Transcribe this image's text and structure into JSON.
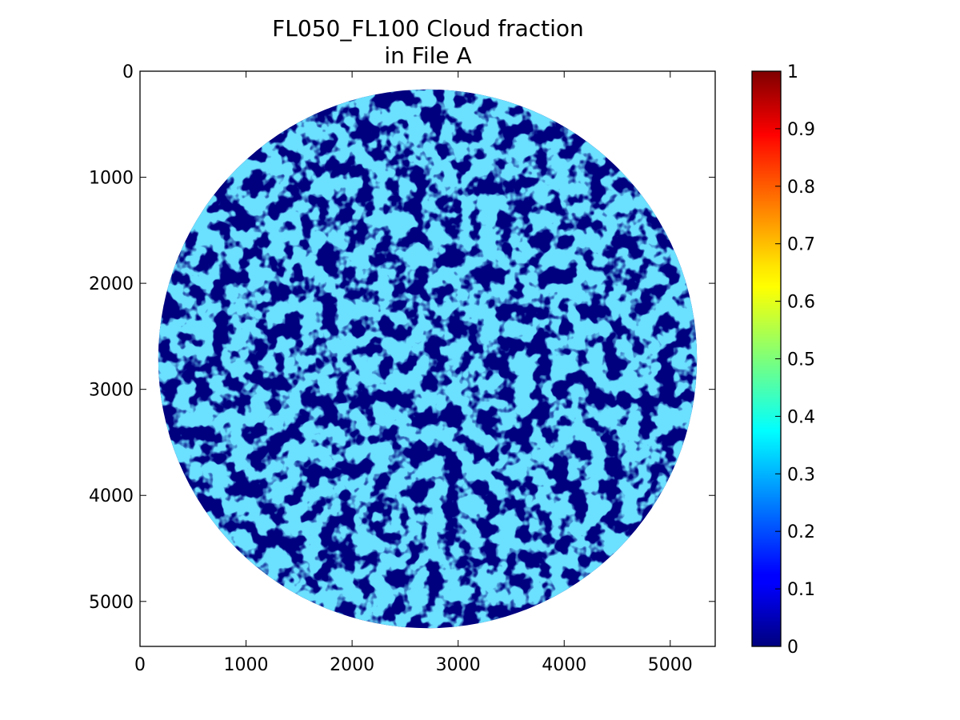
{
  "chart_data": {
    "type": "heatmap",
    "title": "FL050_FL100 Cloud fraction",
    "subtitle": "in File A",
    "xlabel": "",
    "ylabel": "",
    "xlim": [
      0,
      5424
    ],
    "ylim": [
      5424,
      0
    ],
    "x_ticks": [
      0,
      1000,
      2000,
      3000,
      4000,
      5000
    ],
    "y_ticks": [
      0,
      1000,
      2000,
      3000,
      4000,
      5000
    ],
    "x_tick_labels": [
      "0",
      "1000",
      "2000",
      "3000",
      "4000",
      "5000"
    ],
    "y_tick_labels": [
      "0",
      "1000",
      "2000",
      "3000",
      "4000",
      "5000"
    ],
    "disk": {
      "center": [
        2712,
        2712
      ],
      "radius": 2540
    },
    "colormap": "jet",
    "colorbar": {
      "range": [
        0,
        1
      ],
      "ticks": [
        0,
        0.1,
        0.2,
        0.3,
        0.4,
        0.5,
        0.6,
        0.7,
        0.8,
        0.9,
        1
      ],
      "tick_labels": [
        "0",
        "0.1",
        "0.2",
        "0.3",
        "0.4",
        "0.5",
        "0.6",
        "0.7",
        "0.8",
        "0.9",
        "1"
      ]
    },
    "grid": false,
    "legend": "none"
  }
}
